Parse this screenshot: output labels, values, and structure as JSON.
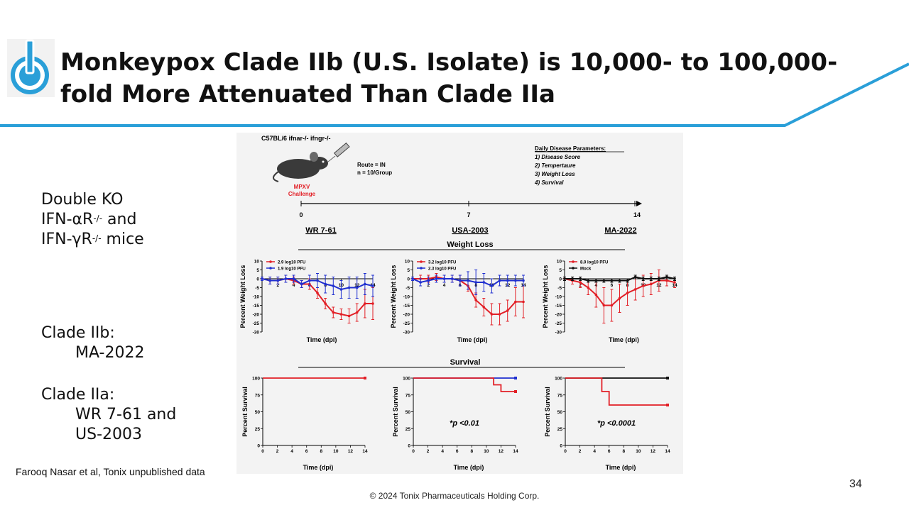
{
  "slide": {
    "title_line1": "Monkeypox Clade IIb (U.S. Isolate) is 10,000- to 100,000-",
    "title_line2": "fold More Attenuated Than Clade IIa",
    "brand_color": "#2a9fd8",
    "logo_icon": "power-icon",
    "page_number": "34",
    "copyright": "© 2024 Tonix Pharmaceuticals Holding Corp.",
    "citation": "Farooq Nasar et al, Tonix unpublished data"
  },
  "sidebar": {
    "line1": "Double KO",
    "line2a": "IFN-αR",
    "line2sup": "-/-",
    "line2b": " and",
    "line3a": "IFN-γR",
    "line3sup": "-/-",
    "line3b": " mice",
    "clade_iib_label": "Clade IIb:",
    "clade_iib_item": "MA-2022",
    "clade_iia_label": "Clade IIa:",
    "clade_iia_item1": "WR 7-61 and",
    "clade_iia_item2": "US-2003"
  },
  "figure": {
    "mouse_strain": "C57BL/6 ifnar-/- ifngr-/-",
    "mouse_icon": "mouse-icon",
    "syringe_icon": "syringe-icon",
    "challenge_line1": "MPXV",
    "challenge_line2": "Challenge",
    "route": "Route = IN",
    "group_size": "n = 10/Group",
    "params_title": "Daily Disease Parameters:",
    "params": [
      "1) Disease Score",
      "2) Tempertaure",
      "3) Weight Loss",
      "4) Survival"
    ],
    "timeline": {
      "ticks": [
        "0",
        "7",
        "14"
      ],
      "labels": [
        "WR 7-61",
        "USA-2003",
        "MA-2022"
      ]
    },
    "weight_section_title": "Weight Loss",
    "survival_section_title": "Survival",
    "weight_ylabel": "Percent Weight Loss",
    "survival_ylabel": "Percent Survival",
    "xlabel": "Time (dpi)",
    "colors": {
      "red": "#e21f26",
      "blue": "#1f2fd0",
      "black": "#111111"
    }
  },
  "chart_data": [
    {
      "type": "line",
      "title": "WR 7-61 Weight Loss",
      "xlabel": "Time (dpi)",
      "ylabel": "Percent Weight Loss",
      "xlim": [
        0,
        14
      ],
      "ylim": [
        -30,
        10
      ],
      "xticks": [
        "2",
        "4",
        "6",
        "8",
        "10",
        "12",
        "14"
      ],
      "yticks": [
        "10",
        "5",
        "0",
        "-5",
        "-10",
        "-15",
        "-20",
        "-25",
        "-30"
      ],
      "series": [
        {
          "name": "2.9 log10 PFU",
          "color": "red",
          "x": [
            0,
            1,
            2,
            3,
            4,
            5,
            6,
            7,
            8,
            9,
            10,
            11,
            12,
            13,
            14
          ],
          "y": [
            0,
            -1,
            -1,
            0,
            -1,
            -3,
            -3,
            -8,
            -14,
            -19,
            -20,
            -21,
            -19,
            -14,
            -14
          ],
          "err": [
            1,
            2,
            2,
            2,
            2,
            2,
            3,
            3,
            3,
            3,
            3,
            4,
            5,
            8,
            9
          ]
        },
        {
          "name": "1.9 log10 PFU",
          "color": "blue",
          "x": [
            0,
            1,
            2,
            3,
            4,
            5,
            6,
            7,
            8,
            9,
            10,
            11,
            12,
            13,
            14
          ],
          "y": [
            0,
            -1,
            -1,
            0,
            0,
            -3,
            -1,
            -1,
            -3,
            -4,
            -6,
            -5,
            -5,
            -3,
            -4
          ],
          "err": [
            1,
            2,
            2,
            2,
            2,
            2,
            3,
            4,
            5,
            5,
            5,
            6,
            6,
            6,
            6
          ]
        }
      ]
    },
    {
      "type": "line",
      "title": "USA-2003 Weight Loss",
      "xlabel": "Time (dpi)",
      "ylabel": "Percent Weight Loss",
      "xlim": [
        0,
        14
      ],
      "ylim": [
        -30,
        10
      ],
      "xticks": [
        "2",
        "4",
        "6",
        "8",
        "10",
        "12",
        "14"
      ],
      "yticks": [
        "10",
        "5",
        "0",
        "-5",
        "-10",
        "-15",
        "-20",
        "-25",
        "-30"
      ],
      "series": [
        {
          "name": "3.2 log10 PFU",
          "color": "red",
          "x": [
            0,
            1,
            2,
            3,
            4,
            5,
            6,
            7,
            8,
            9,
            10,
            11,
            12,
            13,
            14
          ],
          "y": [
            0,
            0,
            0,
            1,
            0,
            0,
            -1,
            -4,
            -12,
            -16,
            -20,
            -20,
            -18,
            -13,
            -13
          ],
          "err": [
            1,
            2,
            2,
            2,
            2,
            2,
            3,
            3,
            4,
            5,
            6,
            6,
            6,
            8,
            9
          ]
        },
        {
          "name": "2.3 log10 PFU",
          "color": "blue",
          "x": [
            0,
            1,
            2,
            3,
            4,
            5,
            6,
            7,
            8,
            9,
            10,
            11,
            12,
            13,
            14
          ],
          "y": [
            0,
            -2,
            -1,
            0,
            0,
            0,
            -1,
            -1,
            -2,
            -2,
            -4,
            -1,
            -1,
            -1,
            -1
          ],
          "err": [
            1,
            2,
            2,
            2,
            2,
            2,
            3,
            5,
            7,
            5,
            4,
            3,
            3,
            3,
            3
          ]
        }
      ]
    },
    {
      "type": "line",
      "title": "MA-2022 Weight Loss",
      "xlabel": "Time (dpi)",
      "ylabel": "Percent Weight Loss",
      "xlim": [
        0,
        14
      ],
      "ylim": [
        -30,
        10
      ],
      "xticks": [
        "2",
        "4",
        "6",
        "8",
        "10",
        "12",
        "14"
      ],
      "yticks": [
        "10",
        "5",
        "0",
        "-5",
        "-10",
        "-15",
        "-20",
        "-25",
        "-30"
      ],
      "series": [
        {
          "name": "8.0 log10 PFU",
          "color": "red",
          "x": [
            0,
            1,
            2,
            3,
            4,
            5,
            6,
            7,
            8,
            9,
            10,
            11,
            12,
            13,
            14
          ],
          "y": [
            0,
            -1,
            -2,
            -5,
            -9,
            -15,
            -15,
            -11,
            -8,
            -6,
            -4,
            -3,
            -1,
            -1,
            -2
          ],
          "err": [
            1,
            2,
            3,
            4,
            7,
            10,
            9,
            8,
            7,
            6,
            6,
            6,
            6,
            3,
            3
          ]
        },
        {
          "name": "Mock",
          "color": "black",
          "x": [
            0,
            1,
            2,
            3,
            4,
            5,
            6,
            7,
            8,
            9,
            10,
            11,
            12,
            13,
            14
          ],
          "y": [
            0,
            0,
            0,
            -1,
            -1,
            -1,
            -1,
            -1,
            -1,
            1,
            0,
            0,
            0,
            1,
            0
          ],
          "err": [
            1,
            1,
            1,
            1,
            1,
            1,
            1,
            1,
            1,
            1,
            1,
            1,
            1,
            1,
            1
          ]
        }
      ]
    },
    {
      "type": "line",
      "title": "WR 7-61 Survival",
      "xlabel": "Time (dpi)",
      "ylabel": "Percent Survival",
      "xlim": [
        0,
        14
      ],
      "ylim": [
        0,
        100
      ],
      "xticks": [
        "0",
        "2",
        "4",
        "6",
        "8",
        "10",
        "12",
        "14"
      ],
      "yticks": [
        "100",
        "75",
        "50",
        "25",
        "0"
      ],
      "annotation": "",
      "series": [
        {
          "name": "2.9 log10 PFU",
          "color": "red",
          "x": [
            0,
            14
          ],
          "y": [
            100,
            100
          ]
        }
      ]
    },
    {
      "type": "line",
      "title": "USA-2003 Survival",
      "xlabel": "Time (dpi)",
      "ylabel": "Percent Survival",
      "xlim": [
        0,
        14
      ],
      "ylim": [
        0,
        100
      ],
      "xticks": [
        "0",
        "2",
        "4",
        "6",
        "8",
        "10",
        "12",
        "14"
      ],
      "yticks": [
        "100",
        "75",
        "50",
        "25",
        "0"
      ],
      "annotation": "*p <0.01",
      "series": [
        {
          "name": "2.3 log10 PFU",
          "color": "blue",
          "x": [
            0,
            14
          ],
          "y": [
            100,
            100
          ]
        },
        {
          "name": "3.2 log10 PFU",
          "color": "red",
          "x": [
            0,
            11,
            12,
            14
          ],
          "y": [
            100,
            90,
            80,
            80
          ]
        }
      ]
    },
    {
      "type": "line",
      "title": "MA-2022 Survival",
      "xlabel": "Time (dpi)",
      "ylabel": "Percent Survival",
      "xlim": [
        0,
        14
      ],
      "ylim": [
        0,
        100
      ],
      "xticks": [
        "0",
        "2",
        "4",
        "6",
        "8",
        "10",
        "12",
        "14"
      ],
      "yticks": [
        "100",
        "75",
        "50",
        "25",
        "0"
      ],
      "annotation": "*p <0.0001",
      "series": [
        {
          "name": "Mock",
          "color": "black",
          "x": [
            0,
            14
          ],
          "y": [
            100,
            100
          ]
        },
        {
          "name": "8.0 log10 PFU",
          "color": "red",
          "x": [
            0,
            5,
            6,
            14
          ],
          "y": [
            100,
            80,
            60,
            60
          ]
        }
      ]
    }
  ]
}
